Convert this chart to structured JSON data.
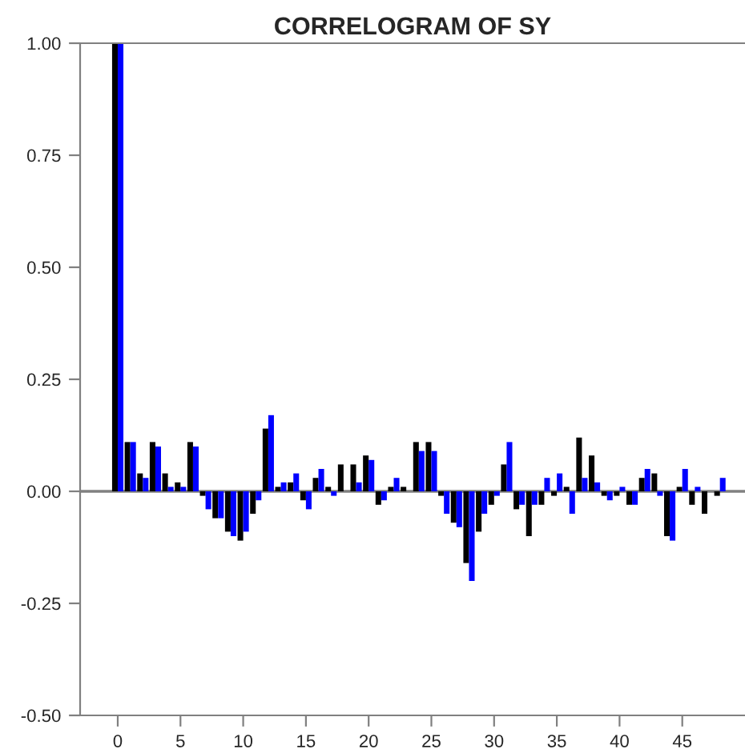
{
  "chart_data": {
    "type": "bar",
    "title": "CORRELOGRAM OF SY",
    "x": [
      0,
      1,
      2,
      3,
      4,
      5,
      6,
      7,
      8,
      9,
      10,
      11,
      12,
      13,
      14,
      15,
      16,
      17,
      18,
      19,
      20,
      21,
      22,
      23,
      24,
      25,
      26,
      27,
      28,
      29,
      30,
      31,
      32,
      33,
      34,
      35,
      36,
      37,
      38,
      39,
      40,
      41,
      42,
      43,
      44,
      45,
      46,
      47,
      48
    ],
    "series": [
      {
        "color": "#000000",
        "values": [
          1.0,
          0.11,
          0.04,
          0.11,
          0.04,
          0.02,
          0.11,
          -0.01,
          -0.06,
          -0.09,
          -0.11,
          -0.05,
          0.14,
          0.01,
          0.02,
          -0.02,
          0.03,
          0.01,
          0.06,
          0.06,
          0.08,
          -0.03,
          0.01,
          0.01,
          0.11,
          0.11,
          -0.01,
          -0.07,
          -0.16,
          -0.09,
          -0.03,
          0.06,
          -0.04,
          -0.1,
          -0.03,
          -0.01,
          0.01,
          0.12,
          0.08,
          -0.01,
          -0.01,
          -0.03,
          0.03,
          0.04,
          -0.1,
          0.01,
          -0.03,
          -0.05,
          -0.01
        ]
      },
      {
        "color": "#0000ff",
        "values": [
          1.0,
          0.11,
          0.03,
          0.1,
          0.01,
          0.01,
          0.1,
          -0.04,
          -0.06,
          -0.1,
          -0.09,
          -0.02,
          0.17,
          0.02,
          0.04,
          -0.04,
          0.05,
          -0.01,
          0.0,
          0.02,
          0.07,
          -0.02,
          0.03,
          0.0,
          0.09,
          0.09,
          -0.05,
          -0.08,
          -0.2,
          -0.05,
          -0.01,
          0.11,
          -0.03,
          -0.03,
          0.03,
          0.04,
          -0.05,
          0.03,
          0.02,
          -0.02,
          0.01,
          -0.03,
          0.05,
          -0.01,
          -0.11,
          0.05,
          0.01,
          0.0,
          0.03
        ]
      }
    ],
    "xlim": [
      -3,
      50
    ],
    "xticks": [
      0,
      5,
      10,
      15,
      20,
      25,
      30,
      35,
      40,
      45
    ],
    "ylim": [
      -0.5,
      1.0
    ],
    "yticks": [
      {
        "value": -0.5,
        "label": "-0.50"
      },
      {
        "value": -0.25,
        "label": "-0.25"
      },
      {
        "value": 0,
        "label": "0.00"
      },
      {
        "value": 0.25,
        "label": "0.25"
      },
      {
        "value": 0.5,
        "label": "0.50"
      },
      {
        "value": 0.75,
        "label": "0.75"
      },
      {
        "value": 1.0,
        "label": "1.00"
      }
    ],
    "ref_lines": [
      {
        "axis": "y",
        "value": 0,
        "color": "#808080"
      }
    ],
    "grid": false,
    "legend": false
  }
}
